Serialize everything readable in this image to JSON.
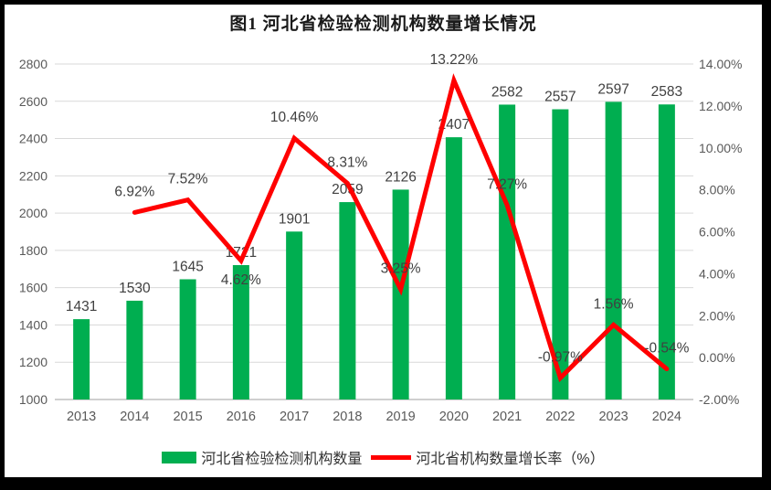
{
  "frame": {
    "background": "#ffffff",
    "border_color": "#000000"
  },
  "chart_data": {
    "type": "combo-bar-line",
    "title": "图1  河北省检验检测机构数量增长情况",
    "categories": [
      "2013",
      "2014",
      "2015",
      "2016",
      "2017",
      "2018",
      "2019",
      "2020",
      "2021",
      "2022",
      "2023",
      "2024"
    ],
    "series": [
      {
        "name": "河北省检验检测机构数量",
        "type": "bar",
        "axis": "left",
        "color": "#00AE50",
        "values": [
          1431,
          1530,
          1645,
          1721,
          1901,
          2059,
          2126,
          2407,
          2582,
          2557,
          2597,
          2583
        ],
        "value_labels": [
          "1431",
          "1530",
          "1645",
          "1721",
          "1901",
          "2059",
          "2126",
          "2407",
          "2582",
          "2557",
          "2597",
          "2583"
        ]
      },
      {
        "name": "河北省机构数量增长率（%）",
        "type": "line",
        "axis": "right",
        "color": "#FF0000",
        "values": [
          null,
          6.92,
          7.52,
          4.62,
          10.46,
          8.31,
          3.25,
          13.22,
          7.27,
          -0.97,
          1.56,
          -0.54
        ],
        "value_labels": [
          null,
          "6.92%",
          "7.52%",
          "4.62%",
          "10.46%",
          "8.31%",
          "3.25%",
          "13.22%",
          "7.27%",
          "-0.97%",
          "1.56%",
          "-0.54%"
        ],
        "label_positions": [
          null,
          "above",
          "above",
          "below",
          "above",
          "above",
          "above",
          "above",
          "above",
          "above",
          "above",
          "above"
        ]
      }
    ],
    "left_axis": {
      "min": 1000,
      "max": 2800,
      "step": 200,
      "tick_labels": [
        "1000",
        "1200",
        "1400",
        "1600",
        "1800",
        "2000",
        "2200",
        "2400",
        "2600",
        "2800"
      ]
    },
    "right_axis": {
      "min": -2,
      "max": 14,
      "step": 2,
      "tick_labels": [
        "-2.00%",
        "0.00%",
        "2.00%",
        "4.00%",
        "6.00%",
        "8.00%",
        "10.00%",
        "12.00%",
        "14.00%"
      ]
    },
    "grid": true,
    "legend_position": "bottom",
    "colors": {
      "grid": "#D9D9D9",
      "axis_line": "#BFBFBF",
      "tick_text": "#595959",
      "data_label_text": "#404040"
    }
  }
}
